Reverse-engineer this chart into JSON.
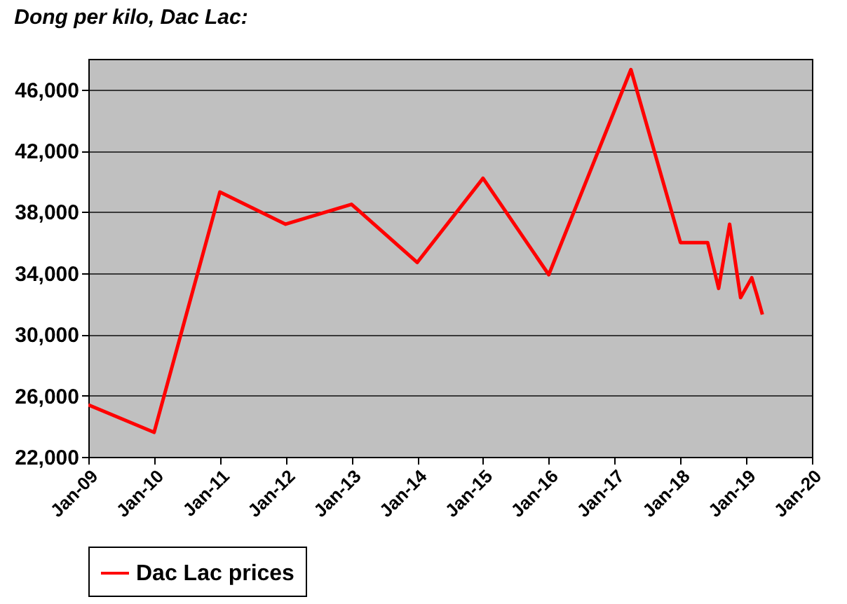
{
  "chart_data": {
    "type": "line",
    "title": "Dong per kilo, Dac Lac:",
    "x": [
      "2009-01",
      "2010-01",
      "2011-01",
      "2012-01",
      "2013-01",
      "2014-01",
      "2015-01",
      "2016-01",
      "2017-04",
      "2018-01",
      "2018-03",
      "2018-06",
      "2018-08",
      "2018-10",
      "2018-12",
      "2019-02",
      "2019-03",
      "2019-04"
    ],
    "series": [
      {
        "name": "Dac Lac prices",
        "color": "#ff0000",
        "values": [
          25400,
          23600,
          39300,
          37200,
          38500,
          34700,
          40200,
          33900,
          47300,
          36000,
          36000,
          36000,
          33000,
          37200,
          32400,
          33700,
          32600,
          31300
        ]
      }
    ],
    "xlim": [
      "2009-01",
      "2020-01"
    ],
    "xticks": [
      {
        "value": "2009-01",
        "label": "Jan-09"
      },
      {
        "value": "2010-01",
        "label": "Jan-10"
      },
      {
        "value": "2011-01",
        "label": "Jan-11"
      },
      {
        "value": "2012-01",
        "label": "Jan-12"
      },
      {
        "value": "2013-01",
        "label": "Jan-13"
      },
      {
        "value": "2014-01",
        "label": "Jan-14"
      },
      {
        "value": "2015-01",
        "label": "Jan-15"
      },
      {
        "value": "2016-01",
        "label": "Jan-16"
      },
      {
        "value": "2017-01",
        "label": "Jan-17"
      },
      {
        "value": "2018-01",
        "label": "Jan-18"
      },
      {
        "value": "2019-01",
        "label": "Jan-19"
      },
      {
        "value": "2020-01",
        "label": "Jan-20"
      }
    ],
    "ylim": [
      22000,
      48000
    ],
    "yticks": [
      {
        "value": 22000,
        "label": "22,000"
      },
      {
        "value": 26000,
        "label": "26,000"
      },
      {
        "value": 30000,
        "label": "30,000"
      },
      {
        "value": 34000,
        "label": "34,000"
      },
      {
        "value": 38000,
        "label": "38,000"
      },
      {
        "value": 42000,
        "label": "42,000"
      },
      {
        "value": 46000,
        "label": "46,000"
      }
    ],
    "grid": "y",
    "legend": "bottom",
    "marker": "none",
    "line_style": "solid"
  }
}
